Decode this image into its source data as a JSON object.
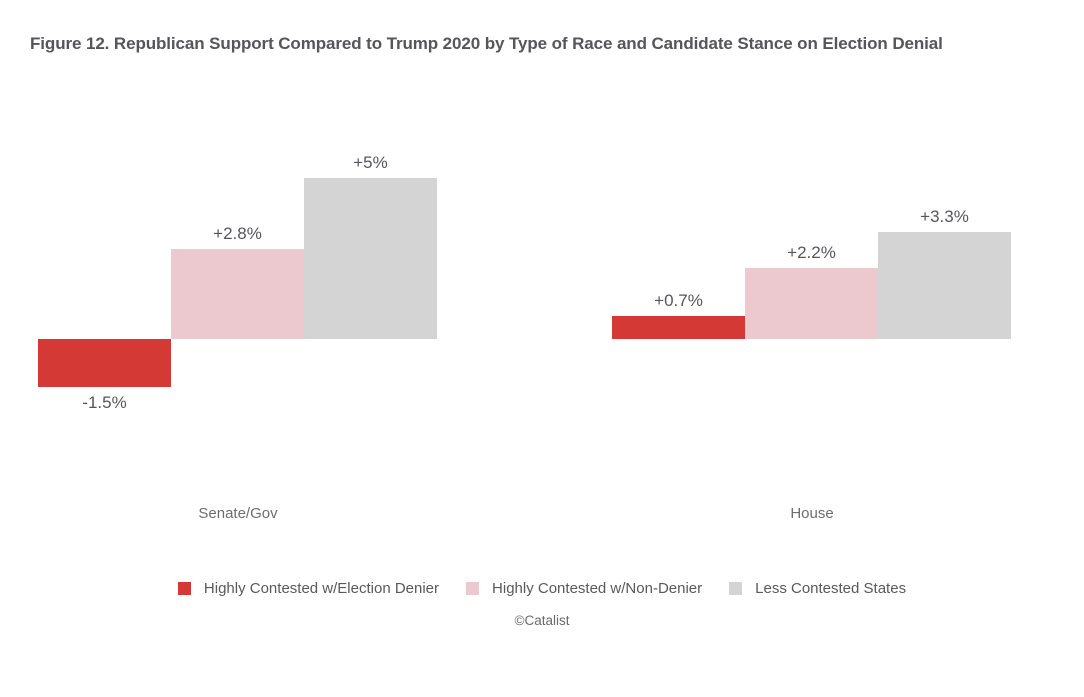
{
  "title": "Figure 12. Republican Support Compared to Trump 2020 by Type of Race and Candidate Stance on Election Denial",
  "credit": "©Catalist",
  "chart_data": {
    "type": "bar",
    "title": "Figure 12. Republican Support Compared to Trump 2020 by Type of Race and Candidate Stance on Election Denial",
    "categories": [
      "Senate/Gov",
      "House"
    ],
    "series": [
      {
        "name": "Highly Contested w/Election Denier",
        "color": "#d43936",
        "values": [
          -1.5,
          0.7
        ],
        "value_labels": [
          "-1.5%",
          "+0.7%"
        ]
      },
      {
        "name": "Highly Contested w/Non-Denier",
        "color": "#ecc9ce",
        "values": [
          2.8,
          2.2
        ],
        "value_labels": [
          "+2.8%",
          "+2.2%"
        ]
      },
      {
        "name": "Less Contested States",
        "color": "#d4d4d4",
        "values": [
          5.0,
          3.3
        ],
        "value_labels": [
          "+5%",
          "+3.3%"
        ]
      }
    ],
    "unit": "%",
    "xlabel": "",
    "ylabel": "",
    "ylim": [
      -2.5,
      6
    ],
    "grid": false,
    "axis_lines": false,
    "legend_position": "bottom"
  }
}
